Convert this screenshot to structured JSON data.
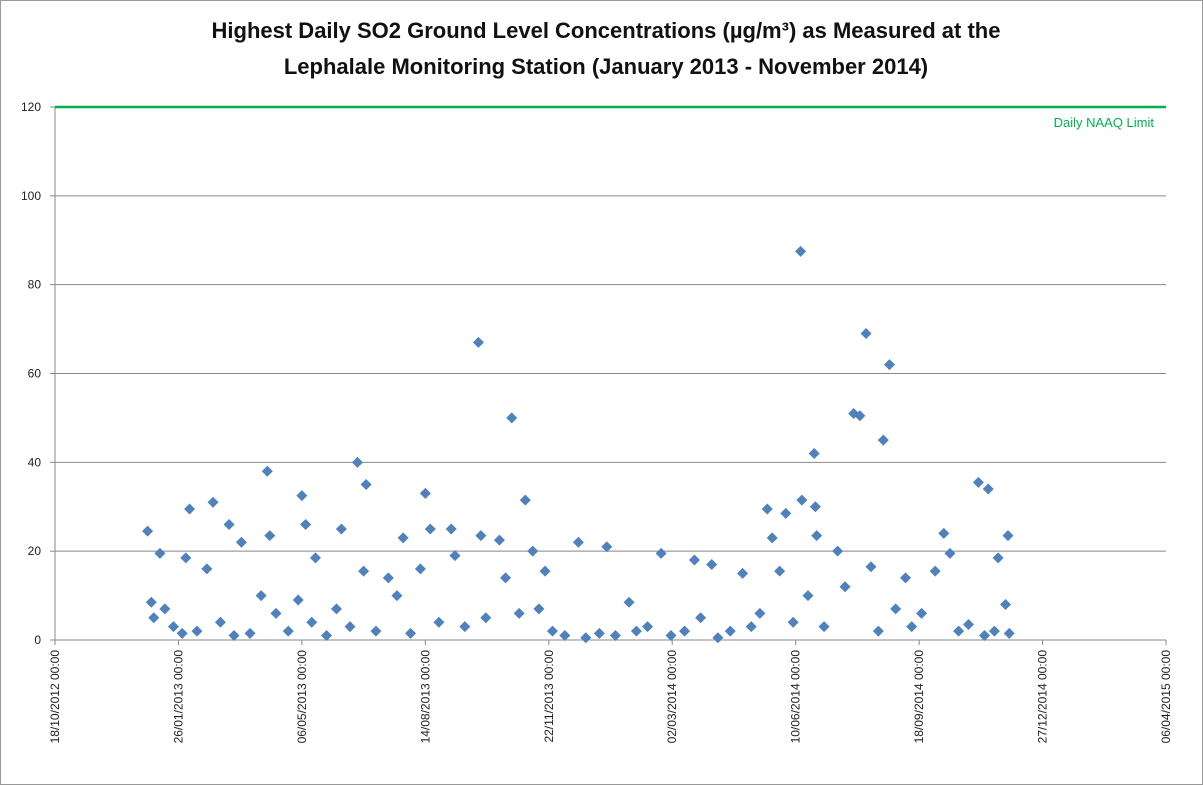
{
  "chart_data": {
    "type": "scatter",
    "title": "Highest Daily SO2 Ground Level Concentrations (µg/m³) as Measured at the",
    "subtitle": "Lephalale Monitoring Station (January 2013 - November 2014)",
    "color": "#4f81bd",
    "grid": true,
    "ylim": [
      0,
      120
    ],
    "yticks": [
      0,
      20,
      40,
      60,
      80,
      100,
      120
    ],
    "xlim": [
      "2012-10-18",
      "2015-04-06"
    ],
    "xticks": [
      {
        "value": "2012-10-18",
        "label": "18/10/2012 00:00"
      },
      {
        "value": "2013-01-26",
        "label": "26/01/2013 00:00"
      },
      {
        "value": "2013-05-06",
        "label": "06/05/2013 00:00"
      },
      {
        "value": "2013-08-14",
        "label": "14/08/2013 00:00"
      },
      {
        "value": "2013-11-22",
        "label": "22/11/2013 00:00"
      },
      {
        "value": "2014-03-02",
        "label": "02/03/2014 00:00"
      },
      {
        "value": "2014-06-10",
        "label": "10/06/2014 00:00"
      },
      {
        "value": "2014-09-18",
        "label": "18/09/2014 00:00"
      },
      {
        "value": "2014-12-27",
        "label": "27/12/2014 00:00"
      },
      {
        "value": "2015-04-06",
        "label": "06/04/2015 00:00"
      }
    ],
    "reference_line": {
      "value": 120,
      "label": "Daily NAAQ Limit",
      "color": "#00b050"
    },
    "x": [
      "2013-01-01",
      "2013-01-04",
      "2013-01-11",
      "2013-02-04",
      "2013-02-01",
      "2013-02-23",
      "2013-03-08",
      "2013-03-18",
      "2013-04-08",
      "2013-04-10",
      "2013-05-06",
      "2013-05-09",
      "2013-05-17",
      "2013-06-07",
      "2013-06-20",
      "2013-06-27",
      "2013-07-27",
      "2013-08-14",
      "2013-08-18",
      "2013-09-04",
      "2013-09-26",
      "2013-09-28",
      "2013-10-13",
      "2013-10-23",
      "2013-11-03",
      "2013-11-09",
      "2013-11-19",
      "2013-12-16",
      "2014-01-08",
      "2014-01-26",
      "2014-02-21",
      "2014-03-20",
      "2014-04-03",
      "2014-04-28",
      "2014-05-18",
      "2014-05-22",
      "2014-06-02",
      "2014-06-14",
      "2014-06-15",
      "2014-06-25",
      "2014-06-26",
      "2014-06-27",
      "2014-07-14",
      "2014-07-27",
      "2014-08-01",
      "2014-08-06",
      "2014-08-20",
      "2014-08-25",
      "2014-09-07",
      "2014-10-08",
      "2014-10-13",
      "2014-11-05",
      "2014-11-13",
      "2014-11-21",
      "2014-11-29",
      "2014-11-27",
      "2013-01-06",
      "2013-01-15",
      "2013-01-22",
      "2013-01-29",
      "2013-02-10",
      "2013-02-18",
      "2013-03-01",
      "2013-03-12",
      "2013-03-25",
      "2013-04-03",
      "2013-04-15",
      "2013-04-25",
      "2013-05-03",
      "2013-05-14",
      "2013-05-26",
      "2013-06-03",
      "2013-06-14",
      "2013-06-25",
      "2013-07-05",
      "2013-07-15",
      "2013-07-22",
      "2013-08-02",
      "2013-08-10",
      "2013-08-25",
      "2013-09-07",
      "2013-09-15",
      "2013-10-02",
      "2013-10-18",
      "2013-10-29",
      "2013-11-14",
      "2013-11-25",
      "2013-12-05",
      "2013-12-22",
      "2014-01-02",
      "2014-01-15",
      "2014-02-01",
      "2014-02-10",
      "2014-03-01",
      "2014-03-12",
      "2014-03-25",
      "2014-04-08",
      "2014-04-18",
      "2014-05-05",
      "2014-05-12",
      "2014-05-28",
      "2014-06-08",
      "2014-06-20",
      "2014-07-03",
      "2014-07-20",
      "2014-08-10",
      "2014-08-16",
      "2014-08-30",
      "2014-09-12",
      "2014-09-20",
      "2014-10-01",
      "2014-10-20",
      "2014-10-28",
      "2014-11-10",
      "2014-11-18",
      "2014-11-30"
    ],
    "values": [
      24.5,
      8.5,
      19.5,
      29.5,
      18.5,
      31,
      26,
      22,
      38,
      23.5,
      32.5,
      26,
      18.5,
      25,
      40,
      35,
      23,
      33,
      25,
      25,
      67,
      23.5,
      22.5,
      50,
      31.5,
      20,
      15.5,
      22,
      21,
      8.5,
      19.5,
      18,
      17,
      15,
      29.5,
      23,
      28.5,
      87.5,
      31.5,
      42,
      30,
      23.5,
      20,
      51,
      50.5,
      69,
      45,
      62,
      14,
      24,
      19.5,
      35.5,
      34,
      18.5,
      23.5,
      8,
      5,
      7,
      3,
      1.5,
      2,
      16,
      4,
      1,
      1.5,
      10,
      6,
      2,
      9,
      4,
      1,
      7,
      3,
      15.5,
      2,
      14,
      10,
      1.5,
      16,
      4,
      19,
      3,
      5,
      14,
      6,
      7,
      2,
      1,
      0.5,
      1.5,
      1,
      2,
      3,
      1,
      2,
      5,
      0.5,
      2,
      3,
      6,
      15.5,
      4,
      10,
      3,
      12,
      16.5,
      2,
      7,
      3,
      6,
      15.5,
      2,
      3.5,
      1,
      2,
      1.5
    ]
  }
}
